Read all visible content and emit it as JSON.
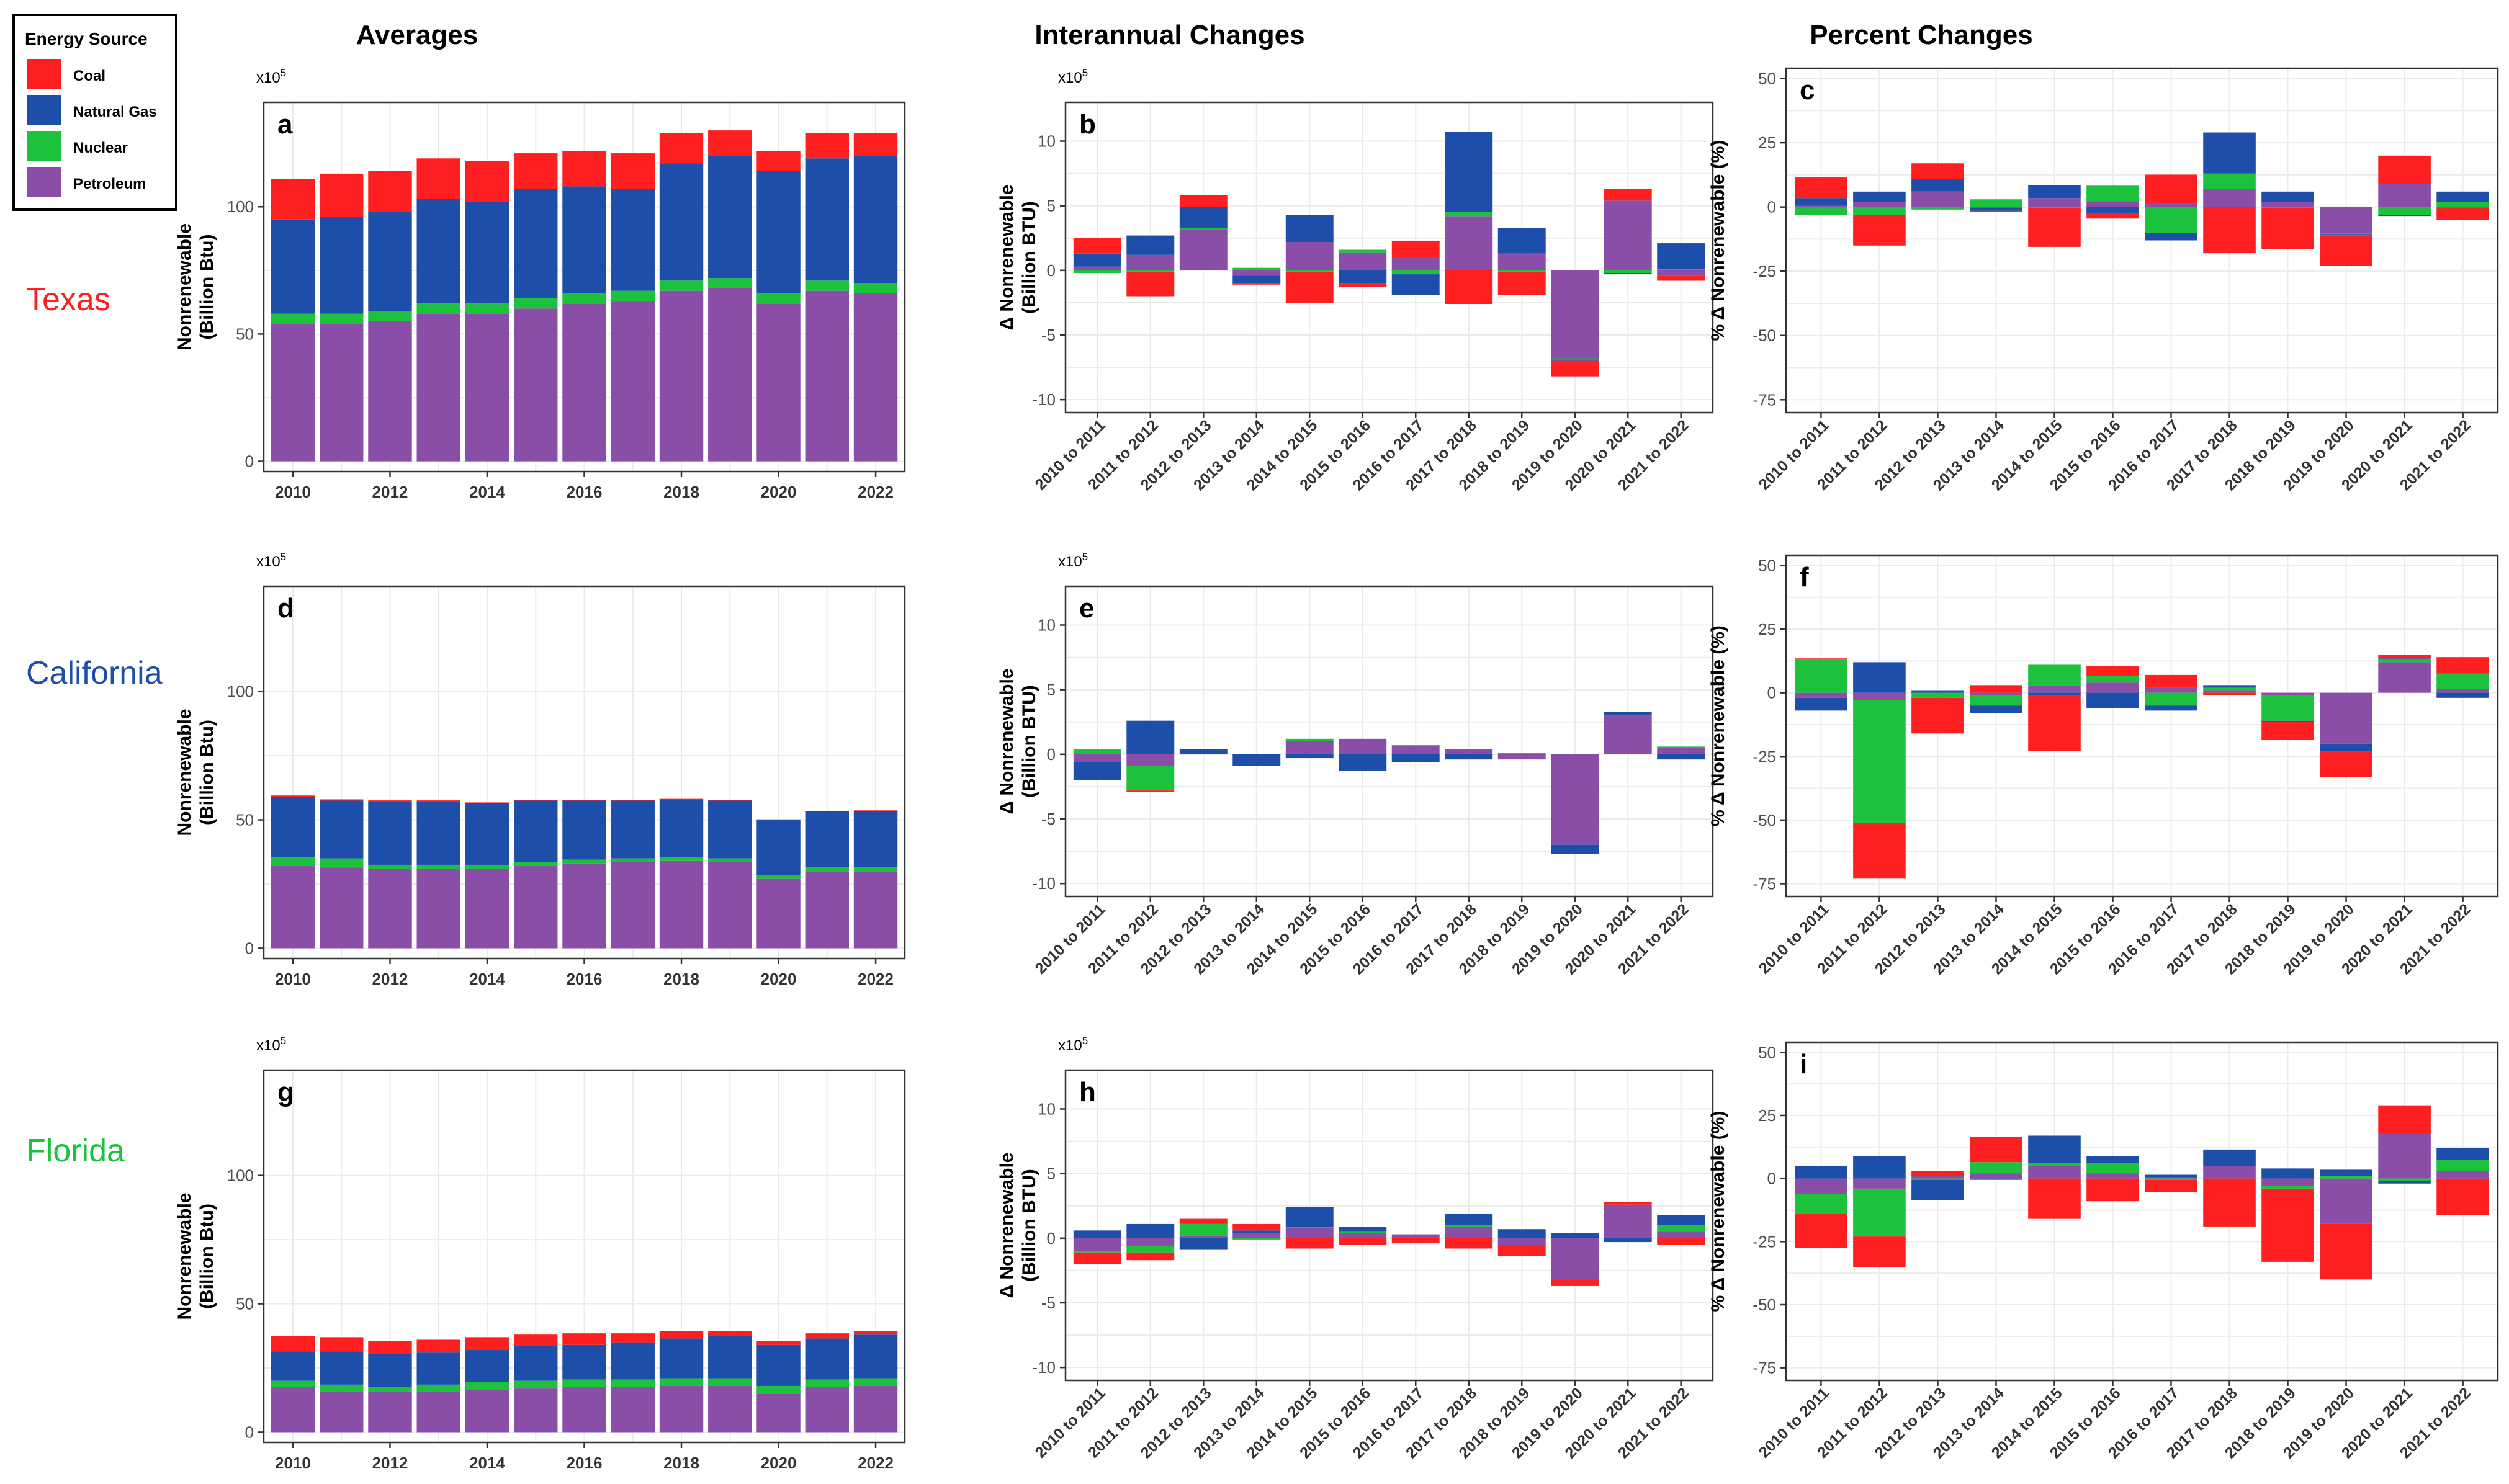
{
  "colors": {
    "coal": "#fe2020",
    "natural_gas": "#1d4faa",
    "nuclear": "#1cc23c",
    "petroleum": "#8a4ea8",
    "texas": "#fe2020",
    "california": "#1d4faa",
    "florida": "#1cc23c"
  },
  "legend": {
    "title": "Energy Source",
    "items": [
      {
        "label": "Coal",
        "key": "coal"
      },
      {
        "label": "Natural Gas",
        "key": "natural_gas"
      },
      {
        "label": "Nuclear",
        "key": "nuclear"
      },
      {
        "label": "Petroleum",
        "key": "petroleum"
      }
    ]
  },
  "columns": [
    "Averages",
    "Interannual Changes",
    "Percent Changes"
  ],
  "states": [
    {
      "name": "Texas",
      "color_key": "texas"
    },
    {
      "name": "California",
      "color_key": "california"
    },
    {
      "name": "Florida",
      "color_key": "florida"
    }
  ],
  "axes": {
    "avg_ylabel": [
      "Nonrenewable",
      "(Billion Btu)"
    ],
    "chg_ylabel": [
      "Δ Nonrenewable",
      "(Billion BTU)"
    ],
    "pct_ylabel": "% Δ Nonrenewable (%)",
    "multiplier_base": "x10",
    "multiplier_exp": "5"
  },
  "chart_data": [
    {
      "panel": "a",
      "type": "bar",
      "stacked": true,
      "state": "Texas",
      "title": "Averages",
      "x": [
        2010,
        2011,
        2012,
        2013,
        2014,
        2015,
        2016,
        2017,
        2018,
        2019,
        2020,
        2021,
        2022
      ],
      "xticks": [
        "2010",
        "2012",
        "2014",
        "2016",
        "2018",
        "2020",
        "2022"
      ],
      "ylim": [
        -4,
        141
      ],
      "yticks": [
        0,
        50,
        100
      ],
      "series": [
        {
          "name": "Petroleum",
          "key": "petroleum",
          "values": [
            54,
            54,
            55,
            58,
            58,
            60,
            62,
            63,
            67,
            68,
            62,
            67,
            66
          ]
        },
        {
          "name": "Nuclear",
          "key": "nuclear",
          "values": [
            4,
            4,
            4,
            4,
            4,
            4,
            4,
            4,
            4,
            4,
            4,
            4,
            4
          ]
        },
        {
          "name": "Natural Gas",
          "key": "natural_gas",
          "values": [
            37,
            38,
            39,
            41,
            40,
            43,
            42,
            40,
            46,
            48,
            48,
            48,
            50
          ]
        },
        {
          "name": "Coal",
          "key": "coal",
          "values": [
            16,
            17,
            16,
            16,
            16,
            14,
            14,
            14,
            12,
            10,
            8,
            10,
            9
          ]
        }
      ]
    },
    {
      "panel": "b",
      "type": "bar",
      "stacked": true,
      "state": "Texas",
      "title": "Interannual Changes",
      "categories": [
        "2010 to 2011",
        "2011 to 2012",
        "2012 to 2013",
        "2013 to 2014",
        "2014 to 2015",
        "2015 to 2016",
        "2016 to 2017",
        "2017 to 2018",
        "2018 to 2019",
        "2019 to 2020",
        "2020 to 2021",
        "2021 to 2022"
      ],
      "ylim": [
        -11,
        13
      ],
      "yticks": [
        -10,
        -5,
        0,
        5,
        10
      ],
      "series": [
        {
          "name": "Petroleum",
          "key": "petroleum",
          "values": [
            0.3,
            1.2,
            3.2,
            -0.4,
            2.2,
            1.4,
            1.0,
            4.2,
            1.3,
            -6.8,
            5.4,
            -0.4
          ]
        },
        {
          "name": "Nuclear",
          "key": "nuclear",
          "values": [
            -0.2,
            -0.1,
            0.1,
            0.2,
            -0.1,
            0.2,
            -0.3,
            0.3,
            -0.1,
            -0.1,
            -0.2,
            0.1
          ]
        },
        {
          "name": "Natural Gas",
          "key": "natural_gas",
          "values": [
            1.0,
            1.5,
            1.6,
            -0.6,
            2.1,
            -1.0,
            -1.6,
            6.2,
            2.0,
            -0.1,
            -0.1,
            2.0
          ]
        },
        {
          "name": "Coal",
          "key": "coal",
          "values": [
            1.2,
            -1.9,
            0.9,
            -0.1,
            -2.4,
            -0.3,
            1.3,
            -2.6,
            -1.8,
            -1.2,
            0.9,
            -0.4
          ]
        }
      ]
    },
    {
      "panel": "c",
      "type": "bar",
      "stacked": true,
      "state": "Texas",
      "title": "Percent Changes",
      "categories": [
        "2010 to 2011",
        "2011 to 2012",
        "2012 to 2013",
        "2013 to 2014",
        "2014 to 2015",
        "2015 to 2016",
        "2016 to 2017",
        "2017 to 2018",
        "2018 to 2019",
        "2019 to 2020",
        "2020 to 2021",
        "2021 to 2022"
      ],
      "ylim": [
        -80,
        54
      ],
      "yticks": [
        -75,
        -50,
        -25,
        0,
        25,
        50
      ],
      "series": [
        {
          "name": "Petroleum",
          "key": "petroleum",
          "values": [
            0.5,
            2,
            6,
            -0.5,
            3.5,
            2.3,
            1.6,
            7,
            2,
            -10,
            9,
            -0.5
          ]
        },
        {
          "name": "Nuclear",
          "key": "nuclear",
          "values": [
            -3,
            -3,
            -1,
            3,
            -0.5,
            6,
            -10,
            6,
            -0.5,
            -0.5,
            -3,
            2
          ]
        },
        {
          "name": "Natural Gas",
          "key": "natural_gas",
          "values": [
            3,
            4,
            5,
            -1,
            5,
            -2.5,
            -3,
            16,
            4,
            -0.5,
            -0.5,
            4
          ]
        },
        {
          "name": "Coal",
          "key": "coal",
          "values": [
            8,
            -12,
            6,
            -0.5,
            -15,
            -2,
            11,
            -18,
            -16,
            -12,
            11,
            -4.5
          ]
        }
      ]
    },
    {
      "panel": "d",
      "type": "bar",
      "stacked": true,
      "state": "California",
      "title": "Averages",
      "x": [
        2010,
        2011,
        2012,
        2013,
        2014,
        2015,
        2016,
        2017,
        2018,
        2019,
        2020,
        2021,
        2022
      ],
      "xticks": [
        "2010",
        "2012",
        "2014",
        "2016",
        "2018",
        "2020",
        "2022"
      ],
      "ylim": [
        -4,
        141
      ],
      "yticks": [
        0,
        50,
        100
      ],
      "series": [
        {
          "name": "Petroleum",
          "key": "petroleum",
          "values": [
            32,
            31.5,
            31,
            31,
            31,
            32,
            33,
            33.5,
            34,
            33.5,
            27,
            30,
            30
          ]
        },
        {
          "name": "Nuclear",
          "key": "nuclear",
          "values": [
            3.5,
            3.5,
            1.5,
            1.5,
            1.5,
            1.5,
            1.5,
            1.5,
            1.5,
            1.5,
            1.5,
            1.5,
            1.5
          ]
        },
        {
          "name": "Natural Gas",
          "key": "natural_gas",
          "values": [
            23.5,
            22.5,
            24.8,
            24.8,
            24,
            24,
            23,
            22.5,
            22.5,
            22.5,
            21.5,
            21.8,
            22
          ]
        },
        {
          "name": "Coal",
          "key": "coal",
          "values": [
            0.5,
            0.5,
            0.3,
            0.3,
            0.3,
            0.2,
            0.2,
            0.2,
            0.2,
            0.2,
            0.2,
            0.2,
            0.2
          ]
        }
      ]
    },
    {
      "panel": "e",
      "type": "bar",
      "stacked": true,
      "state": "California",
      "title": "Interannual Changes",
      "categories": [
        "2010 to 2011",
        "2011 to 2012",
        "2012 to 2013",
        "2013 to 2014",
        "2014 to 2015",
        "2015 to 2016",
        "2016 to 2017",
        "2017 to 2018",
        "2018 to 2019",
        "2019 to 2020",
        "2020 to 2021",
        "2021 to 2022"
      ],
      "ylim": [
        -11,
        13
      ],
      "yticks": [
        -10,
        -5,
        0,
        5,
        10
      ],
      "series": [
        {
          "name": "Petroleum",
          "key": "petroleum",
          "values": [
            -0.6,
            -0.9,
            0,
            0,
            1.0,
            1.2,
            0.7,
            0.4,
            -0.4,
            -7.0,
            3.0,
            0.5
          ]
        },
        {
          "name": "Nuclear",
          "key": "nuclear",
          "values": [
            0.4,
            -1.9,
            0,
            0,
            0.2,
            0,
            0,
            0,
            0.1,
            0,
            0,
            0.1
          ]
        },
        {
          "name": "Natural Gas",
          "key": "natural_gas",
          "values": [
            -1.4,
            2.6,
            0.4,
            -0.9,
            -0.3,
            -1.3,
            -0.6,
            -0.4,
            0,
            -0.7,
            0.3,
            -0.4
          ]
        },
        {
          "name": "Coal",
          "key": "coal",
          "values": [
            0,
            -0.1,
            0,
            0,
            0,
            0,
            0,
            0,
            0,
            0,
            0,
            0
          ]
        }
      ]
    },
    {
      "panel": "f",
      "type": "bar",
      "stacked": true,
      "state": "California",
      "title": "Percent Changes",
      "categories": [
        "2010 to 2011",
        "2011 to 2012",
        "2012 to 2013",
        "2013 to 2014",
        "2014 to 2015",
        "2015 to 2016",
        "2016 to 2017",
        "2017 to 2018",
        "2018 to 2019",
        "2019 to 2020",
        "2020 to 2021",
        "2021 to 2022"
      ],
      "ylim": [
        -80,
        54
      ],
      "yticks": [
        -75,
        -50,
        -25,
        0,
        25,
        50
      ],
      "series": [
        {
          "name": "Petroleum",
          "key": "petroleum",
          "values": [
            -2,
            -3,
            0,
            -1,
            3,
            4,
            2,
            1,
            -1,
            -20,
            12,
            1.5
          ]
        },
        {
          "name": "Nuclear",
          "key": "nuclear",
          "values": [
            13,
            -48,
            -2,
            -4,
            8,
            2.5,
            -5,
            1,
            -10,
            0,
            1,
            6
          ]
        },
        {
          "name": "Natural Gas",
          "key": "natural_gas",
          "values": [
            -5,
            12,
            1,
            -3,
            -1,
            -6,
            -2,
            1,
            -0.5,
            -3,
            0.5,
            -2
          ]
        },
        {
          "name": "Coal",
          "key": "coal",
          "values": [
            0.5,
            -22,
            -14,
            3,
            -22,
            4,
            5,
            -1,
            -7,
            -10,
            1.5,
            6.5
          ]
        }
      ]
    },
    {
      "panel": "g",
      "type": "bar",
      "stacked": true,
      "state": "Florida",
      "title": "Averages",
      "x": [
        2010,
        2011,
        2012,
        2013,
        2014,
        2015,
        2016,
        2017,
        2018,
        2019,
        2020,
        2021,
        2022
      ],
      "xticks": [
        "2010",
        "2012",
        "2014",
        "2016",
        "2018",
        "2020",
        "2022"
      ],
      "ylim": [
        -4,
        141
      ],
      "yticks": [
        0,
        50,
        100
      ],
      "series": [
        {
          "name": "Petroleum",
          "key": "petroleum",
          "values": [
            17.5,
            16,
            16,
            16,
            16.5,
            17,
            17.5,
            17.5,
            18,
            18,
            15,
            17.5,
            18
          ]
        },
        {
          "name": "Nuclear",
          "key": "nuclear",
          "values": [
            2.5,
            2.5,
            1.5,
            2.5,
            3,
            3,
            3,
            3,
            3,
            3,
            3,
            3,
            3
          ]
        },
        {
          "name": "Natural Gas",
          "key": "natural_gas",
          "values": [
            11.5,
            13,
            13,
            12.5,
            12.5,
            13.5,
            13.5,
            14.5,
            15.5,
            16.5,
            16,
            16,
            17
          ]
        },
        {
          "name": "Coal",
          "key": "coal",
          "values": [
            6,
            5.5,
            5,
            5,
            5,
            4.5,
            4.5,
            3.5,
            3,
            2,
            1.5,
            2,
            1.5
          ]
        }
      ]
    },
    {
      "panel": "h",
      "type": "bar",
      "stacked": true,
      "state": "Florida",
      "title": "Interannual Changes",
      "categories": [
        "2010 to 2011",
        "2011 to 2012",
        "2012 to 2013",
        "2013 to 2014",
        "2014 to 2015",
        "2015 to 2016",
        "2016 to 2017",
        "2017 to 2018",
        "2018 to 2019",
        "2019 to 2020",
        "2020 to 2021",
        "2021 to 2022"
      ],
      "ylim": [
        -11,
        13
      ],
      "yticks": [
        -10,
        -5,
        0,
        5,
        10
      ],
      "series": [
        {
          "name": "Petroleum",
          "key": "petroleum",
          "values": [
            -1.0,
            -0.6,
            0.2,
            0.4,
            0.8,
            0.4,
            0.3,
            0.9,
            -0.5,
            -3.2,
            2.6,
            0.5
          ]
        },
        {
          "name": "Nuclear",
          "key": "nuclear",
          "values": [
            -0.1,
            -0.5,
            0.9,
            -0.1,
            0.1,
            0.1,
            0,
            0.1,
            0,
            0,
            0,
            0.5
          ]
        },
        {
          "name": "Natural Gas",
          "key": "natural_gas",
          "values": [
            0.6,
            1.1,
            -0.9,
            0.2,
            1.5,
            0.4,
            0,
            0.9,
            0.7,
            0.4,
            -0.3,
            0.8
          ]
        },
        {
          "name": "Coal",
          "key": "coal",
          "values": [
            -0.9,
            -0.6,
            0.4,
            0.5,
            -0.8,
            -0.5,
            -0.4,
            -0.8,
            -0.9,
            -0.5,
            0.2,
            -0.5
          ]
        }
      ]
    },
    {
      "panel": "i",
      "type": "bar",
      "stacked": true,
      "state": "Florida",
      "title": "Percent Changes",
      "categories": [
        "2010 to 2011",
        "2011 to 2012",
        "2012 to 2013",
        "2013 to 2014",
        "2014 to 2015",
        "2015 to 2016",
        "2016 to 2017",
        "2017 to 2018",
        "2018 to 2019",
        "2019 to 2020",
        "2020 to 2021",
        "2021 to 2022"
      ],
      "ylim": [
        -80,
        54
      ],
      "yticks": [
        -75,
        -50,
        -25,
        0,
        25,
        50
      ],
      "series": [
        {
          "name": "Petroleum",
          "key": "petroleum",
          "values": [
            -6,
            -4,
            1,
            2,
            5,
            2,
            0.5,
            5,
            -3,
            -18,
            18,
            3
          ]
        },
        {
          "name": "Nuclear",
          "key": "nuclear",
          "values": [
            -8,
            -19,
            -0.5,
            4.5,
            1,
            4,
            -0.5,
            0,
            -1,
            1,
            -1,
            4.5
          ]
        },
        {
          "name": "Natural Gas",
          "key": "natural_gas",
          "values": [
            5,
            9,
            -8,
            -0.5,
            11,
            3,
            1,
            6.5,
            4,
            2.5,
            -1,
            4.5
          ]
        },
        {
          "name": "Coal",
          "key": "coal",
          "values": [
            -13.5,
            -12,
            2,
            10,
            -16,
            -9,
            -5,
            -19,
            -29,
            -22,
            11,
            -14.5
          ]
        }
      ]
    }
  ]
}
